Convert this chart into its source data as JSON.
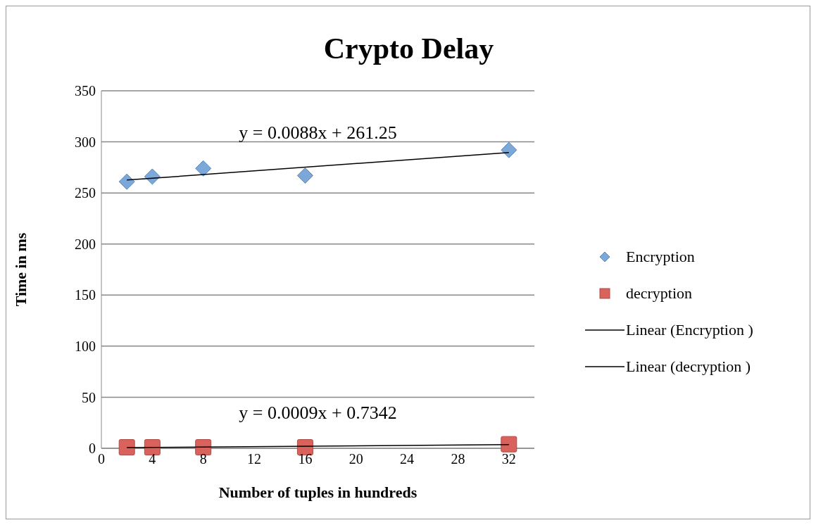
{
  "chart_data": {
    "type": "scatter",
    "title": "Crypto Delay",
    "xlabel": "Number of tuples in hundreds",
    "ylabel": "Time in ms",
    "xlim": [
      0,
      34
    ],
    "xticks": [
      0,
      4,
      8,
      12,
      16,
      20,
      24,
      28,
      32
    ],
    "ylim": [
      0,
      350
    ],
    "yticks": [
      0,
      50,
      100,
      150,
      200,
      250,
      300,
      350
    ],
    "grid": "y",
    "legend": "right",
    "series": [
      {
        "name": "Encryption",
        "marker": "diamond",
        "color": "#7ba7d9",
        "x": [
          2,
          4,
          8,
          16,
          32
        ],
        "values": [
          261,
          266,
          274,
          267,
          292
        ]
      },
      {
        "name": "decryption",
        "marker": "square",
        "color": "#d9625c",
        "x": [
          2,
          4,
          8,
          16,
          32
        ],
        "values": [
          1,
          1,
          1,
          1,
          4
        ]
      },
      {
        "name": "Linear (Encryption )",
        "type": "line",
        "marker": "none",
        "color": "#000000",
        "x": [
          2,
          32
        ],
        "values": [
          262.6,
          289.6
        ]
      },
      {
        "name": "Linear (decryption )",
        "type": "line",
        "marker": "none",
        "color": "#000000",
        "x": [
          2,
          32
        ],
        "values": [
          0.7,
          3.6
        ]
      }
    ],
    "annotations": [
      "y = 0.0088x + 261.25",
      "y = 0.0009x + 0.7342"
    ]
  }
}
